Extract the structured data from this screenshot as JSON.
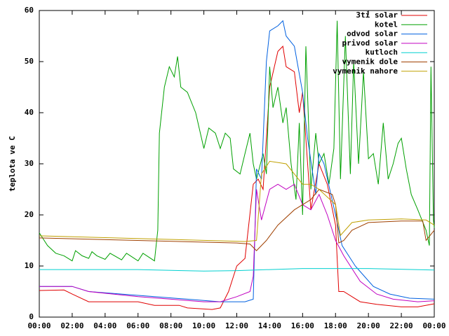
{
  "chart_data": {
    "type": "line",
    "y_label": "teplota ve C",
    "legend": "upper right",
    "xlim": [
      0,
      24
    ],
    "ylim": [
      0,
      60
    ],
    "xticks": [
      {
        "value": 0,
        "label": "00:00"
      },
      {
        "value": 2,
        "label": "02:00"
      },
      {
        "value": 4,
        "label": "04:00"
      },
      {
        "value": 6,
        "label": "06:00"
      },
      {
        "value": 8,
        "label": "08:00"
      },
      {
        "value": 10,
        "label": "10:00"
      },
      {
        "value": 12,
        "label": "12:00"
      },
      {
        "value": 14,
        "label": "14:00"
      },
      {
        "value": 16,
        "label": "16:00"
      },
      {
        "value": 18,
        "label": "18:00"
      },
      {
        "value": 20,
        "label": "20:00"
      },
      {
        "value": 22,
        "label": "22:00"
      },
      {
        "value": 24,
        "label": "00:00"
      }
    ],
    "yticks": [
      0,
      10,
      20,
      30,
      40,
      50,
      60
    ],
    "series": [
      {
        "name": "3ti solar",
        "color": "#e00000",
        "x": [
          0,
          1.5,
          2,
          3,
          6,
          7,
          8.5,
          9,
          10.5,
          11,
          11.5,
          12,
          12.5,
          13,
          13.3,
          13.6,
          14,
          14.5,
          14.8,
          15,
          15.5,
          15.8,
          16,
          16.5,
          17,
          17.5,
          18,
          18.2,
          18.5,
          19.5,
          20.5,
          22,
          23,
          24
        ],
        "values": [
          5.2,
          5.3,
          4.5,
          3,
          3,
          2.3,
          2.3,
          1.8,
          1.5,
          1.8,
          5,
          10,
          11.5,
          26,
          27,
          25,
          45,
          52,
          53,
          49,
          48,
          40,
          44,
          21,
          30,
          26,
          18,
          5,
          5,
          3,
          2.5,
          2,
          2,
          2.6
        ]
      },
      {
        "name": "kotel",
        "color": "#00a000",
        "x": [
          0,
          0.5,
          1,
          1.5,
          2,
          2.2,
          2.6,
          3,
          3.2,
          3.5,
          4,
          4.3,
          5,
          5.3,
          6,
          6.3,
          7,
          7.2,
          7.3,
          7.6,
          7.9,
          8.2,
          8.4,
          8.6,
          9,
          9.5,
          10,
          10.3,
          10.7,
          11,
          11.3,
          11.6,
          11.8,
          12.2,
          12.5,
          12.8,
          13,
          13.2,
          13.6,
          13.8,
          14,
          14.2,
          14.5,
          14.8,
          15,
          15.3,
          15.6,
          15.8,
          16,
          16.2,
          16.5,
          16.8,
          17,
          17.3,
          17.6,
          17.9,
          18.1,
          18.3,
          18.6,
          18.9,
          19.1,
          19.4,
          19.7,
          20,
          20.3,
          20.6,
          20.9,
          21.2,
          21.5,
          21.8,
          22,
          22.3,
          22.6,
          23,
          23.5,
          23.7,
          23.8,
          23.95,
          24
        ],
        "values": [
          16.5,
          14,
          12.5,
          12,
          11,
          13,
          12,
          11.5,
          12.8,
          12,
          11.3,
          12.5,
          11.2,
          12.5,
          11,
          12.5,
          11,
          17,
          36,
          45,
          49,
          47,
          51,
          45,
          44,
          40,
          33,
          37,
          36,
          33,
          36,
          35,
          29,
          28,
          32,
          36,
          30,
          27,
          32,
          28,
          49,
          41,
          45,
          38,
          41,
          30,
          23,
          38,
          20,
          53,
          25,
          36,
          30,
          32,
          26,
          33,
          58,
          27,
          55,
          28,
          50,
          30,
          48,
          31,
          32,
          26,
          38,
          27,
          30,
          34,
          35,
          29,
          24,
          21,
          17,
          14,
          49,
          19,
          17.5
        ]
      },
      {
        "name": "odvod solar",
        "color": "#0060e0",
        "x": [
          0,
          2,
          3,
          5,
          7,
          9,
          11,
          12.5,
          13,
          13.2,
          13.5,
          13.8,
          14,
          14.5,
          14.8,
          15,
          15.5,
          16,
          16.3,
          16.8,
          17,
          17.3,
          18,
          18.4,
          19.2,
          20.3,
          21.3,
          22.5,
          24
        ],
        "values": [
          6,
          6,
          5,
          4.5,
          4,
          3.5,
          3,
          3,
          3.5,
          29,
          27,
          50,
          56,
          57,
          58,
          55,
          53,
          44,
          35,
          24,
          32,
          30,
          20,
          14,
          10,
          6,
          4.5,
          3.7,
          3.5
        ]
      },
      {
        "name": "privod solar",
        "color": "#c000c0",
        "x": [
          0,
          2,
          3,
          6,
          8,
          10,
          11,
          12,
          12.8,
          13,
          13.2,
          13.5,
          14,
          14.5,
          15,
          15.5,
          16,
          16.5,
          17,
          17.5,
          18,
          18.5,
          19.5,
          20.5,
          21.5,
          23,
          24
        ],
        "values": [
          6,
          6,
          5,
          4,
          3.5,
          3,
          3,
          4,
          5,
          8,
          25,
          19,
          25,
          26,
          25,
          26,
          22,
          21,
          24,
          20,
          15,
          12,
          7,
          4.5,
          3.5,
          3,
          3.2
        ]
      },
      {
        "name": "kutloch",
        "color": "#00d0d0",
        "x": [
          0,
          6,
          10,
          12,
          16,
          20,
          24
        ],
        "values": [
          9.3,
          9.3,
          9.0,
          9.1,
          9.5,
          9.5,
          9.2
        ]
      },
      {
        "name": "vymenik dole",
        "color": "#a04000",
        "x": [
          0,
          12,
          12.8,
          13.2,
          13.8,
          14.5,
          15.5,
          16.5,
          17,
          17.8,
          18,
          18.2,
          18.5,
          19,
          20,
          22,
          23.3,
          23.5,
          24
        ],
        "values": [
          15.5,
          14.5,
          14.3,
          13,
          15,
          18,
          21,
          23,
          25,
          24,
          22,
          14.5,
          15,
          17,
          18.5,
          18.8,
          18.8,
          15,
          17
        ]
      },
      {
        "name": "vymenik nahore",
        "color": "#c0a000",
        "x": [
          0,
          12.5,
          13.2,
          13.5,
          14,
          15,
          16,
          16.5,
          17,
          18,
          18.3,
          19,
          20,
          22,
          23.5,
          24
        ],
        "values": [
          15.9,
          14.8,
          15,
          28,
          30.5,
          30,
          26,
          26,
          25,
          22,
          16,
          18.5,
          19,
          19.2,
          19,
          18
        ]
      }
    ]
  }
}
